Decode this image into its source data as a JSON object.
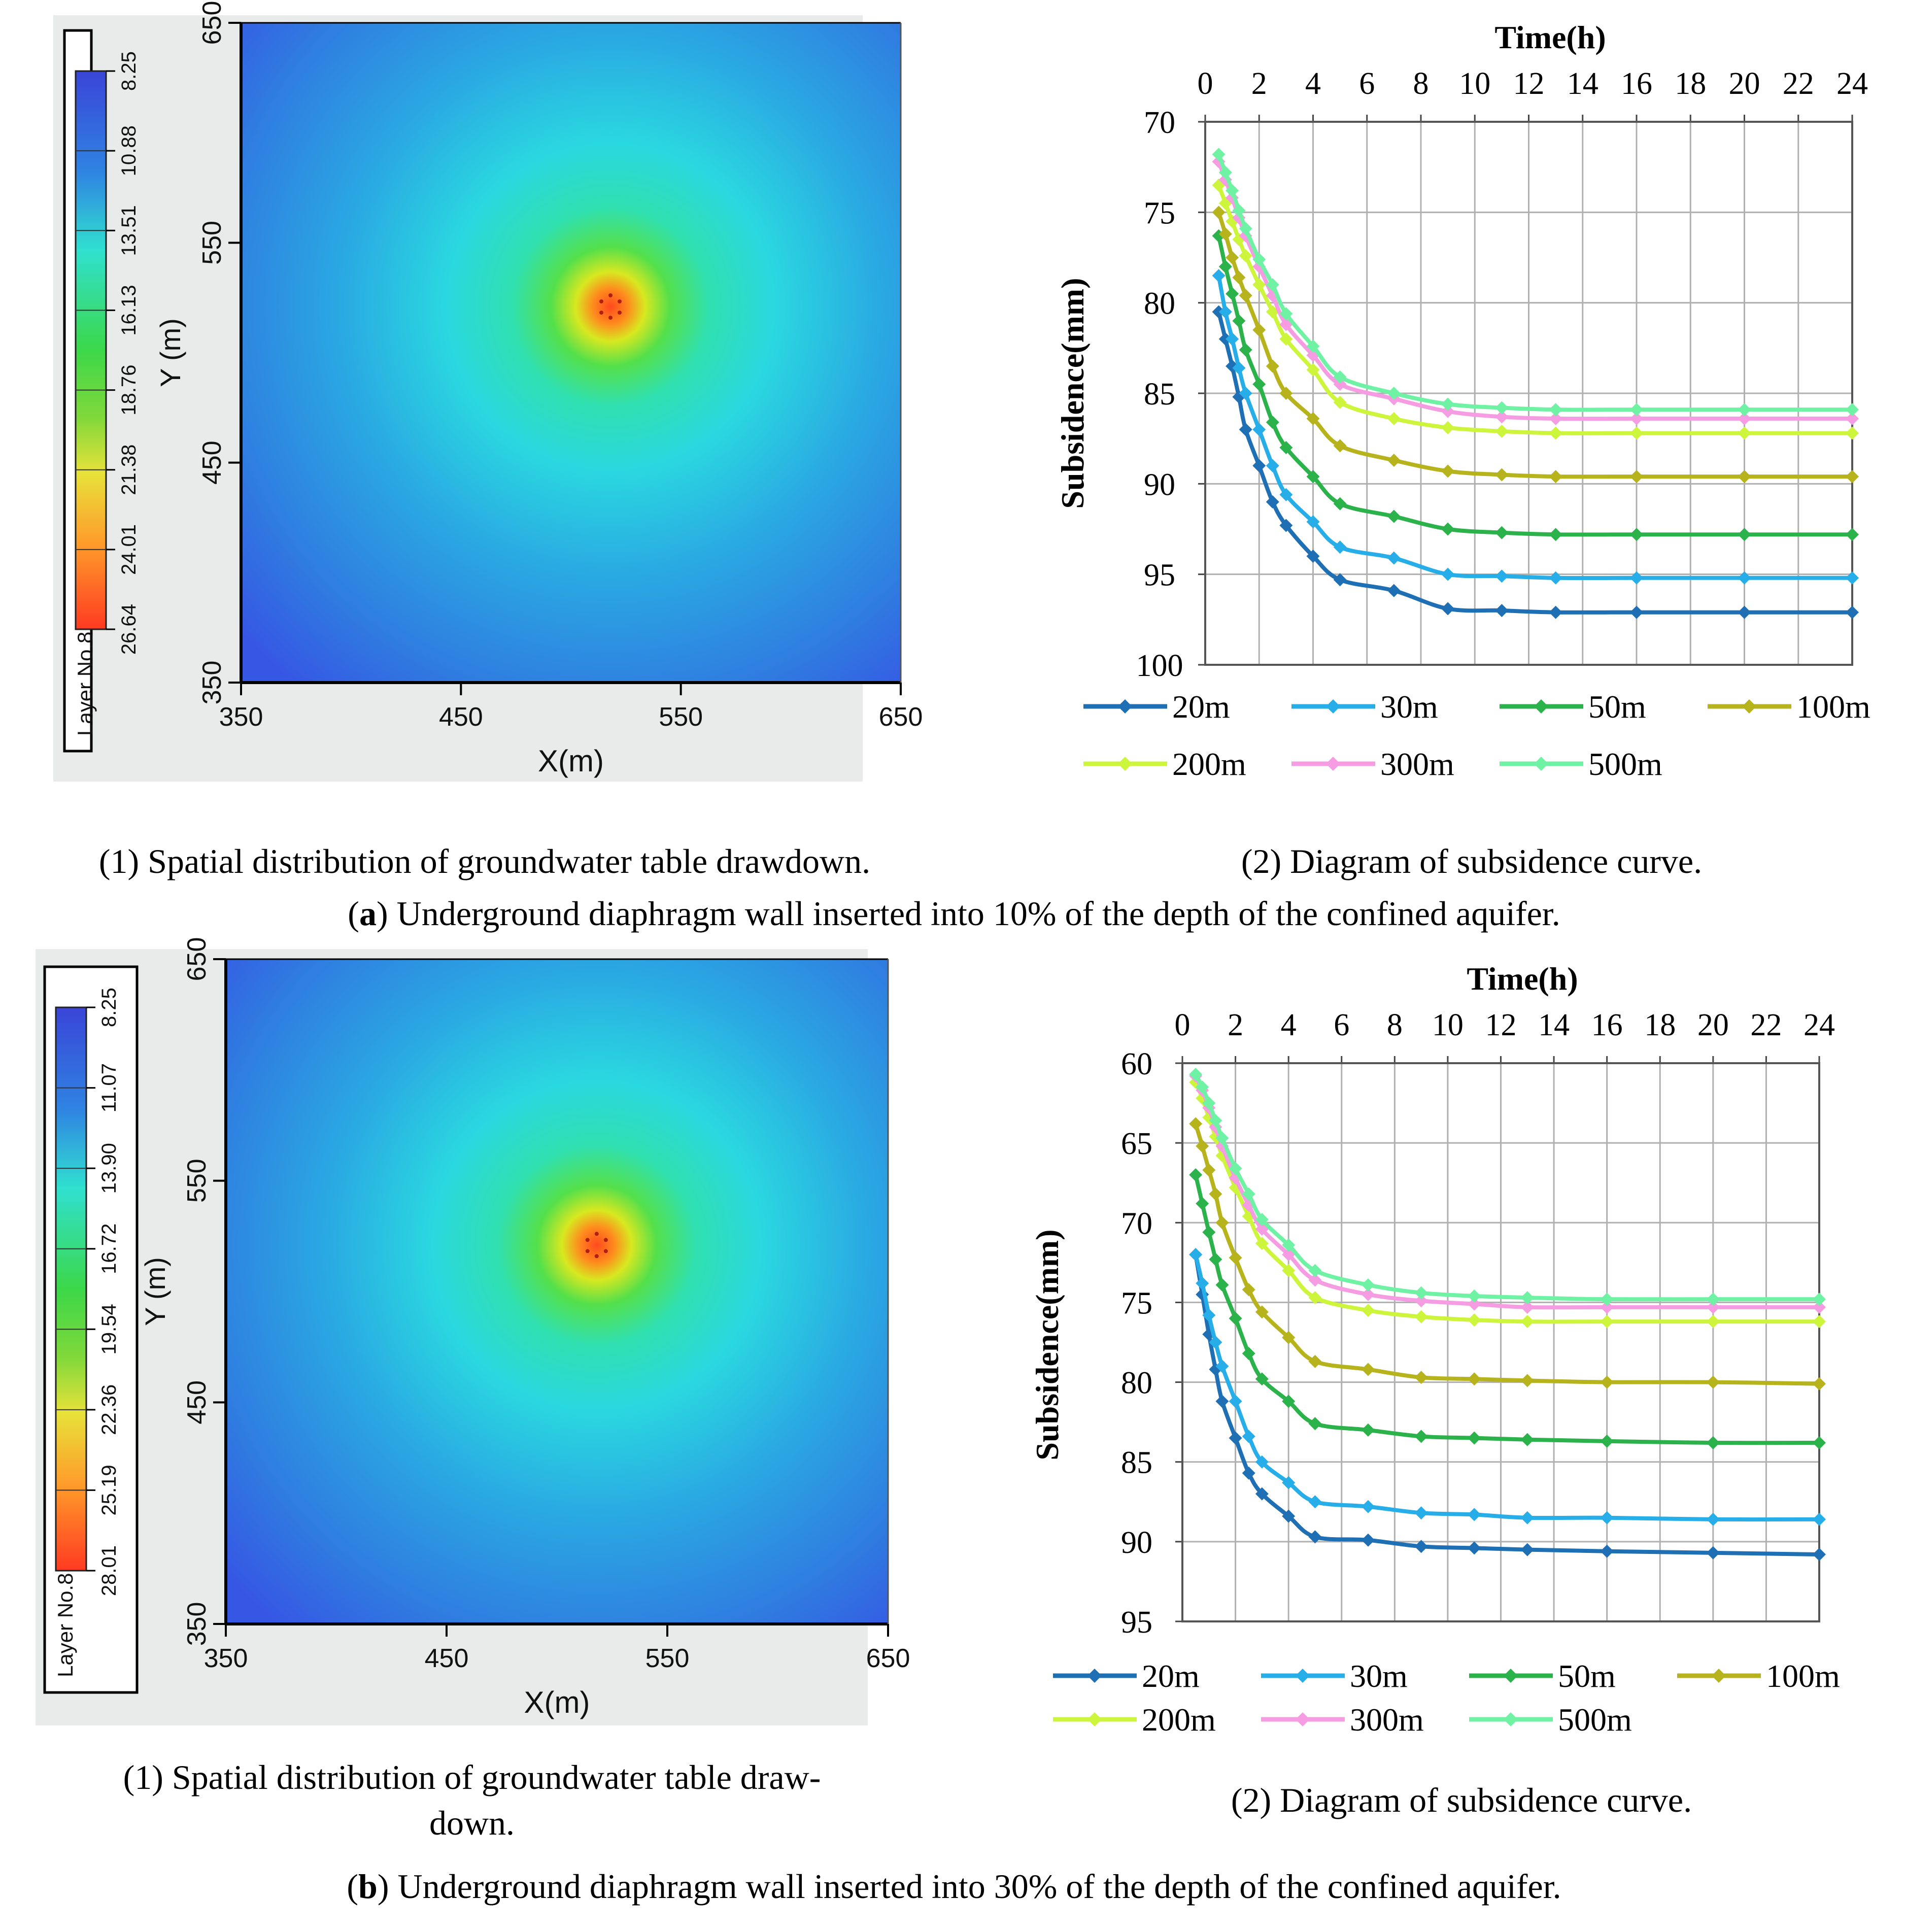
{
  "colors": {
    "panel_bg": "#e8ebe9",
    "series": [
      "#1f6fb5",
      "#27aee8",
      "#2bb24a",
      "#b6b31c",
      "#ccf53c",
      "#f59ce3",
      "#6ff2a4"
    ]
  },
  "series_names": [
    "20m",
    "30m",
    "50m",
    "100m",
    "200m",
    "300m",
    "500m"
  ],
  "panels": [
    {
      "caption_left": "(1) Spatial distribution of groundwater table drawdown.",
      "caption_right": "(2) Diagram of subsidence curve.",
      "caption_label": "a",
      "caption_text": ") Underground diaphragm wall inserted into 10% of the depth of the confined aquifer.",
      "map": {
        "layer_label": "Layer No.8",
        "legend_values": [
          "8.25",
          "10.88",
          "13.51",
          "16.13",
          "18.76",
          "21.38",
          "24.01",
          "26.64"
        ],
        "x_ticks": [
          "350",
          "450",
          "550",
          "650"
        ],
        "y_ticks": [
          "650",
          "550",
          "450",
          "350"
        ],
        "xlabel": "X(m)",
        "ylabel": "Y (m)"
      }
    },
    {
      "caption_left_line1": "(1) Spatial distribution of groundwater table draw-",
      "caption_left_line2": "down.",
      "caption_right": "(2) Diagram of subsidence curve.",
      "caption_label": "b",
      "caption_text": ") Underground diaphragm wall inserted into 30% of the depth of the confined aquifer.",
      "map": {
        "layer_label": "Layer No.8",
        "legend_values": [
          "8.25",
          "11.07",
          "13.90",
          "16.72",
          "19.54",
          "22.36",
          "25.19",
          "28.01"
        ],
        "x_ticks": [
          "350",
          "450",
          "550",
          "650"
        ],
        "y_ticks": [
          "650",
          "550",
          "450",
          "350"
        ],
        "xlabel": "X(m)",
        "ylabel": "Y (m)"
      }
    }
  ],
  "chart_data": [
    {
      "type": "line",
      "title": "",
      "xlabel": "Time(h)",
      "ylabel": "Subsidence(mm)",
      "xlim": [
        0,
        24
      ],
      "ylim": [
        70,
        100
      ],
      "x_ticks": [
        0,
        2,
        4,
        6,
        8,
        10,
        12,
        14,
        16,
        18,
        20,
        22,
        24
      ],
      "y_ticks": [
        70,
        75,
        80,
        85,
        90,
        95,
        100
      ],
      "x_axis_position": "top",
      "y_axis_inverted": true,
      "grid": true,
      "legend_position": "bottom",
      "series": [
        {
          "name": "20m",
          "x": [
            0.5,
            0.75,
            1,
            1.25,
            1.5,
            2,
            2.5,
            3,
            4,
            5,
            7,
            9,
            11,
            13,
            16,
            20,
            24
          ],
          "values": [
            80.5,
            82.0,
            83.5,
            85.2,
            87.0,
            89.0,
            91.0,
            92.3,
            94.0,
            95.3,
            95.9,
            96.9,
            97.0,
            97.1,
            97.1,
            97.1,
            97.1
          ]
        },
        {
          "name": "30m",
          "x": [
            0.5,
            0.75,
            1,
            1.25,
            1.5,
            2,
            2.5,
            3,
            4,
            5,
            7,
            9,
            11,
            13,
            16,
            20,
            24
          ],
          "values": [
            78.5,
            80.5,
            82.0,
            83.6,
            85.0,
            87.0,
            89.0,
            90.6,
            92.1,
            93.5,
            94.1,
            95.0,
            95.1,
            95.2,
            95.2,
            95.2,
            95.2
          ]
        },
        {
          "name": "50m",
          "x": [
            0.5,
            0.75,
            1,
            1.25,
            1.5,
            2,
            2.5,
            3,
            4,
            5,
            7,
            9,
            11,
            13,
            16,
            20,
            24
          ],
          "values": [
            76.3,
            78.0,
            79.5,
            81.0,
            82.6,
            84.5,
            86.6,
            88.0,
            89.6,
            91.1,
            91.8,
            92.5,
            92.7,
            92.8,
            92.8,
            92.8,
            92.8
          ]
        },
        {
          "name": "100m",
          "x": [
            0.5,
            0.75,
            1,
            1.25,
            1.5,
            2,
            2.5,
            3,
            4,
            5,
            7,
            9,
            11,
            13,
            16,
            20,
            24
          ],
          "values": [
            75.0,
            76.2,
            77.5,
            78.6,
            79.6,
            81.5,
            83.5,
            85.0,
            86.4,
            87.9,
            88.7,
            89.3,
            89.5,
            89.6,
            89.6,
            89.6,
            89.6
          ]
        },
        {
          "name": "200m",
          "x": [
            0.5,
            0.75,
            1,
            1.25,
            1.5,
            2,
            2.5,
            3,
            4,
            5,
            7,
            9,
            11,
            13,
            16,
            20,
            24
          ],
          "values": [
            73.5,
            74.5,
            75.5,
            76.5,
            77.4,
            79.0,
            80.5,
            82.0,
            83.7,
            85.5,
            86.4,
            86.9,
            87.1,
            87.2,
            87.2,
            87.2,
            87.2
          ]
        },
        {
          "name": "300m",
          "x": [
            0.5,
            0.75,
            1,
            1.25,
            1.5,
            2,
            2.5,
            3,
            4,
            5,
            7,
            9,
            11,
            13,
            16,
            20,
            24
          ],
          "values": [
            72.2,
            73.2,
            74.2,
            75.3,
            76.3,
            78.0,
            79.6,
            81.2,
            82.9,
            84.5,
            85.3,
            86.0,
            86.3,
            86.4,
            86.4,
            86.4,
            86.4
          ]
        },
        {
          "name": "500m",
          "x": [
            0.5,
            0.75,
            1,
            1.25,
            1.5,
            2,
            2.5,
            3,
            4,
            5,
            7,
            9,
            11,
            13,
            16,
            20,
            24
          ],
          "values": [
            71.8,
            72.8,
            73.8,
            74.9,
            75.9,
            77.6,
            79.0,
            80.6,
            82.4,
            84.1,
            85.0,
            85.6,
            85.8,
            85.9,
            85.9,
            85.9,
            85.9
          ]
        }
      ]
    },
    {
      "type": "line",
      "title": "",
      "xlabel": "Time(h)",
      "ylabel": "Subsidence(mm)",
      "xlim": [
        0,
        24
      ],
      "ylim": [
        60,
        95
      ],
      "x_ticks": [
        0,
        2,
        4,
        6,
        8,
        10,
        12,
        14,
        16,
        18,
        20,
        22,
        24
      ],
      "y_ticks": [
        60,
        65,
        70,
        75,
        80,
        85,
        90,
        95
      ],
      "x_axis_position": "top",
      "y_axis_inverted": true,
      "grid": true,
      "legend_position": "bottom",
      "series": [
        {
          "name": "20m",
          "x": [
            0.5,
            0.75,
            1,
            1.25,
            1.5,
            2,
            2.5,
            3,
            4,
            5,
            7,
            9,
            11,
            13,
            16,
            20,
            24
          ],
          "values": [
            72.0,
            74.5,
            77.0,
            79.2,
            81.2,
            83.5,
            85.7,
            87.0,
            88.4,
            89.7,
            89.9,
            90.3,
            90.4,
            90.5,
            90.6,
            90.7,
            90.8
          ]
        },
        {
          "name": "30m",
          "x": [
            0.5,
            0.75,
            1,
            1.25,
            1.5,
            2,
            2.5,
            3,
            4,
            5,
            7,
            9,
            11,
            13,
            16,
            20,
            24
          ],
          "values": [
            72.0,
            73.8,
            75.8,
            77.5,
            79.0,
            81.2,
            83.4,
            85.0,
            86.3,
            87.5,
            87.8,
            88.2,
            88.3,
            88.5,
            88.5,
            88.6,
            88.6
          ]
        },
        {
          "name": "50m",
          "x": [
            0.5,
            0.75,
            1,
            1.25,
            1.5,
            2,
            2.5,
            3,
            4,
            5,
            7,
            9,
            11,
            13,
            16,
            20,
            24
          ],
          "values": [
            67.0,
            68.8,
            70.6,
            72.3,
            73.9,
            76.0,
            78.2,
            79.8,
            81.2,
            82.6,
            83.0,
            83.4,
            83.5,
            83.6,
            83.7,
            83.8,
            83.8
          ]
        },
        {
          "name": "100m",
          "x": [
            0.5,
            0.75,
            1,
            1.25,
            1.5,
            2,
            2.5,
            3,
            4,
            5,
            7,
            9,
            11,
            13,
            16,
            20,
            24
          ],
          "values": [
            63.8,
            65.2,
            66.7,
            68.2,
            70.0,
            72.2,
            74.2,
            75.6,
            77.2,
            78.7,
            79.2,
            79.7,
            79.8,
            79.9,
            80.0,
            80.0,
            80.1
          ]
        },
        {
          "name": "200m",
          "x": [
            0.5,
            0.75,
            1,
            1.25,
            1.5,
            2,
            2.5,
            3,
            4,
            5,
            7,
            9,
            11,
            13,
            16,
            20,
            24
          ],
          "values": [
            61.2,
            62.2,
            63.4,
            64.6,
            65.8,
            67.8,
            69.6,
            71.3,
            73.0,
            74.7,
            75.5,
            75.9,
            76.1,
            76.2,
            76.2,
            76.2,
            76.2
          ]
        },
        {
          "name": "300m",
          "x": [
            0.5,
            0.75,
            1,
            1.25,
            1.5,
            2,
            2.5,
            3,
            4,
            5,
            7,
            9,
            11,
            13,
            16,
            20,
            24
          ],
          "values": [
            60.8,
            61.7,
            62.8,
            64.0,
            65.2,
            67.2,
            68.9,
            70.4,
            72.0,
            73.6,
            74.5,
            74.9,
            75.1,
            75.3,
            75.3,
            75.3,
            75.3
          ]
        },
        {
          "name": "500m",
          "x": [
            0.5,
            0.75,
            1,
            1.25,
            1.5,
            2,
            2.5,
            3,
            4,
            5,
            7,
            9,
            11,
            13,
            16,
            20,
            24
          ],
          "values": [
            60.7,
            61.5,
            62.5,
            63.6,
            64.7,
            66.6,
            68.2,
            69.8,
            71.4,
            73.0,
            73.9,
            74.4,
            74.6,
            74.7,
            74.8,
            74.8,
            74.8
          ]
        }
      ]
    }
  ]
}
